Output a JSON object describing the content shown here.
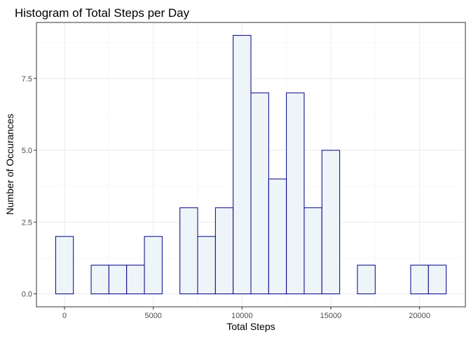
{
  "chart_data": {
    "type": "bar",
    "title": "Histogram of Total Steps per Day",
    "xlabel": "Total Steps",
    "ylabel": "Number of Occurances",
    "xlim": [
      -1582,
      22582
    ],
    "ylim": [
      -0.45,
      9.45
    ],
    "x_ticks": [
      0,
      5000,
      10000,
      15000,
      20000
    ],
    "x_tick_labels": [
      "0",
      "5000",
      "10000",
      "15000",
      "20000"
    ],
    "y_ticks": [
      0,
      2.5,
      5,
      7.5
    ],
    "y_tick_labels": [
      "0.0",
      "2.5",
      "5.0",
      "7.5"
    ],
    "bin_width": 1000,
    "bin_centers": [
      0,
      1000,
      2000,
      3000,
      4000,
      5000,
      6000,
      7000,
      8000,
      9000,
      10000,
      11000,
      12000,
      13000,
      14000,
      15000,
      16000,
      17000,
      18000,
      19000,
      20000,
      21000
    ],
    "values": [
      2,
      0,
      1,
      1,
      1,
      2,
      0,
      3,
      2,
      3,
      9,
      7,
      4,
      7,
      3,
      5,
      0,
      1,
      0,
      0,
      1,
      1
    ],
    "grid": true,
    "legend": "none",
    "bar_fill": "#eef5f9",
    "bar_stroke": "#00008b",
    "panel_border": "#333333",
    "grid_major_color": "#ebebeb",
    "grid_minor_color": "#f5f5f5"
  }
}
